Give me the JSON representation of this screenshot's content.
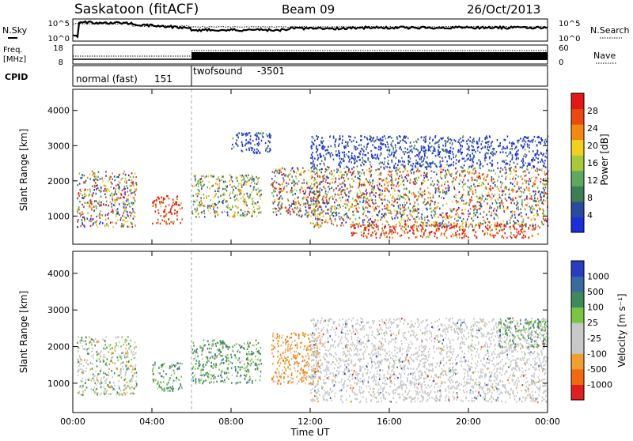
{
  "header": {
    "station": "Saskatoon (fitACF)",
    "beam": "Beam 09",
    "date": "26/Oct/2013"
  },
  "noise_panel": {
    "left_label": "N.Sky",
    "left_ticks": [
      "10^5",
      "10^0"
    ],
    "right_label": "N.Search",
    "right_ticks": [
      "10^5",
      "10^0"
    ]
  },
  "freq_panel": {
    "left_label_line1": "Freq.",
    "left_label_line2": "[MHz]",
    "left_ticks": [
      "18",
      "8"
    ],
    "right_label": "Nave",
    "right_ticks": [
      "60",
      "0"
    ]
  },
  "cpid_panel": {
    "label": "CPID",
    "modes": [
      {
        "name": "normal (fast)",
        "id": "151",
        "start": "00:00",
        "end": "06:00"
      },
      {
        "name": "twofsound",
        "id": "-3501",
        "start": "06:00",
        "end": "24:00"
      }
    ]
  },
  "colors": {
    "power": [
      "#1a2fd8",
      "#2c4a9c",
      "#3f7d55",
      "#60a860",
      "#a8c83c",
      "#f0d020",
      "#f08a10",
      "#e84a10",
      "#e01818"
    ],
    "velocity": [
      "#2a3cc0",
      "#3a6aa0",
      "#3f8a5a",
      "#7cc444",
      "#c8c8c8",
      "#c8c8c8",
      "#f0a030",
      "#f06a10",
      "#e02020"
    ],
    "mode_divider": "#aaaaaa"
  },
  "chart_data": [
    {
      "type": "heatmap",
      "title": "Power",
      "quantity": "Power [dB]",
      "xlabel": "",
      "ylabel": "Slant Range [km]",
      "xlim_hours": [
        0,
        24
      ],
      "ylim_km": [
        200,
        4600
      ],
      "y_ticks": [
        "1000",
        "2000",
        "3000",
        "4000"
      ],
      "colorbar_label": "Power [dB]",
      "colorbar_ticks": [
        "4",
        "8",
        "12",
        "16",
        "20",
        "24",
        "28"
      ],
      "scatter_regions": [
        {
          "t0": 0.2,
          "t1": 3.2,
          "r0": 700,
          "r1": 2300,
          "level": "mixed"
        },
        {
          "t0": 4.0,
          "t1": 5.5,
          "r0": 800,
          "r1": 1600,
          "level": "strong"
        },
        {
          "t0": 6.0,
          "t1": 9.5,
          "r0": 1000,
          "r1": 2200,
          "level": "medium"
        },
        {
          "t0": 8.0,
          "t1": 10.0,
          "r0": 2800,
          "r1": 3400,
          "level": "weak"
        },
        {
          "t0": 10.0,
          "t1": 12.5,
          "r0": 1000,
          "r1": 2400,
          "level": "mixed"
        },
        {
          "t0": 12.0,
          "t1": 24.0,
          "r0": 700,
          "r1": 2400,
          "level": "mixed"
        },
        {
          "t0": 14.0,
          "t1": 23.5,
          "r0": 400,
          "r1": 800,
          "level": "strong"
        },
        {
          "t0": 12.0,
          "t1": 24.0,
          "r0": 2400,
          "r1": 3300,
          "level": "weak"
        }
      ]
    },
    {
      "type": "heatmap",
      "title": "Velocity",
      "quantity": "Velocity [m s^-1]",
      "xlabel": "Time UT",
      "ylabel": "Slant Range [km]",
      "xlim_hours": [
        0,
        24
      ],
      "ylim_km": [
        200,
        4600
      ],
      "x_ticks": [
        "00:00",
        "04:00",
        "08:00",
        "12:00",
        "16:00",
        "20:00",
        "00:00"
      ],
      "y_ticks": [
        "1000",
        "2000",
        "3000",
        "4000"
      ],
      "colorbar_label": "Velocity [m s⁻¹]",
      "colorbar_ticks": [
        "1000",
        "500",
        "100",
        "25",
        "-25",
        "-100",
        "-500",
        "-1000"
      ],
      "scatter_regions": [
        {
          "t0": 0.2,
          "t1": 3.2,
          "r0": 700,
          "r1": 2300,
          "level": "grey-green"
        },
        {
          "t0": 4.0,
          "t1": 5.5,
          "r0": 800,
          "r1": 1600,
          "level": "green"
        },
        {
          "t0": 6.0,
          "t1": 9.5,
          "r0": 1000,
          "r1": 2200,
          "level": "green"
        },
        {
          "t0": 10.0,
          "t1": 12.5,
          "r0": 1000,
          "r1": 2400,
          "level": "orange"
        },
        {
          "t0": 12.0,
          "t1": 24.0,
          "r0": 500,
          "r1": 2800,
          "level": "grey"
        },
        {
          "t0": 21.5,
          "t1": 24.0,
          "r0": 2000,
          "r1": 2800,
          "level": "green"
        }
      ]
    }
  ]
}
